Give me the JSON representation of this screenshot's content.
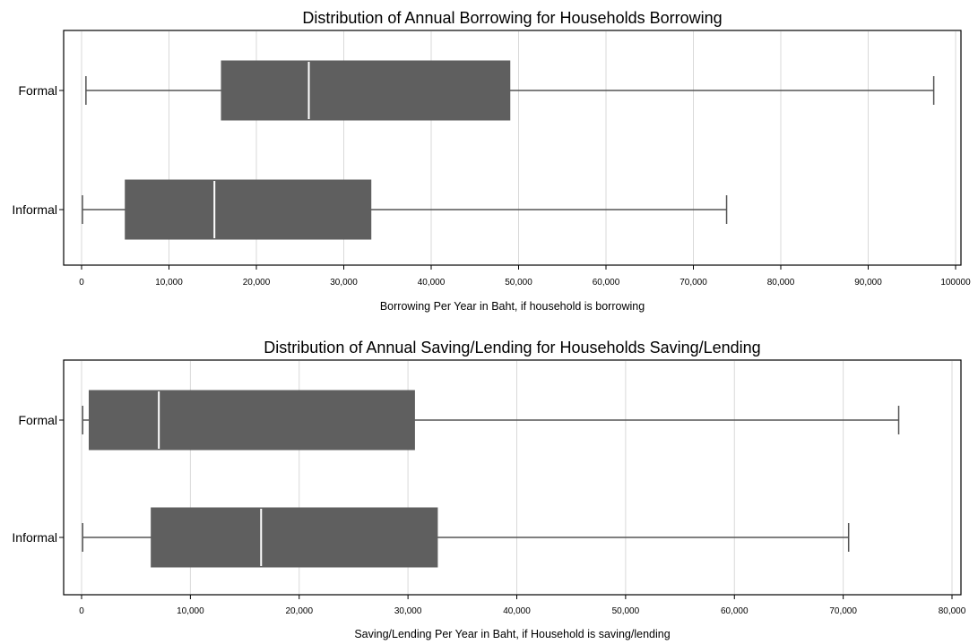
{
  "colors": {
    "box_fill": "#5f5f5f",
    "median": "#ffffff",
    "whisker": "#555555",
    "grid": "#d9d9d9",
    "frame": "#000000"
  },
  "chart_data": [
    {
      "type": "box",
      "orientation": "horizontal",
      "title": "Distribution of Annual Borrowing for Households Borrowing",
      "xlabel": "Borrowing Per Year in Baht, if household is borrowing",
      "xlim": [
        0,
        100000
      ],
      "xticks": [
        0,
        10000,
        20000,
        30000,
        40000,
        50000,
        60000,
        70000,
        80000,
        90000,
        100000
      ],
      "xtick_labels": [
        "0",
        "10,000",
        "20,000",
        "30,000",
        "40,000",
        "50,000",
        "60,000",
        "70,000",
        "80,000",
        "90,000",
        "100000"
      ],
      "grid": true,
      "categories": [
        "Formal",
        "Informal"
      ],
      "boxes": [
        {
          "name": "Formal",
          "min": 500,
          "q1": 16000,
          "median": 26000,
          "q3": 49000,
          "max": 97500
        },
        {
          "name": "Informal",
          "min": 100,
          "q1": 5000,
          "median": 15200,
          "q3": 33100,
          "max": 73800
        }
      ]
    },
    {
      "type": "box",
      "orientation": "horizontal",
      "title": "Distribution of Annual Saving/Lending for Households Saving/Lending",
      "xlabel": "Saving/Lending Per Year in Baht, if Household is saving/lending",
      "xlim": [
        0,
        80000
      ],
      "xticks": [
        0,
        10000,
        20000,
        30000,
        40000,
        50000,
        60000,
        70000,
        80000
      ],
      "xtick_labels": [
        "0",
        "10,000",
        "20,000",
        "30,000",
        "40,000",
        "50,000",
        "60,000",
        "70,000",
        "80,000"
      ],
      "grid": true,
      "categories": [
        "Formal",
        "Informal"
      ],
      "boxes": [
        {
          "name": "Formal",
          "min": 100,
          "q1": 700,
          "median": 7100,
          "q3": 30600,
          "max": 75100
        },
        {
          "name": "Informal",
          "min": 100,
          "q1": 6400,
          "median": 16500,
          "q3": 32700,
          "max": 70500
        }
      ]
    }
  ]
}
